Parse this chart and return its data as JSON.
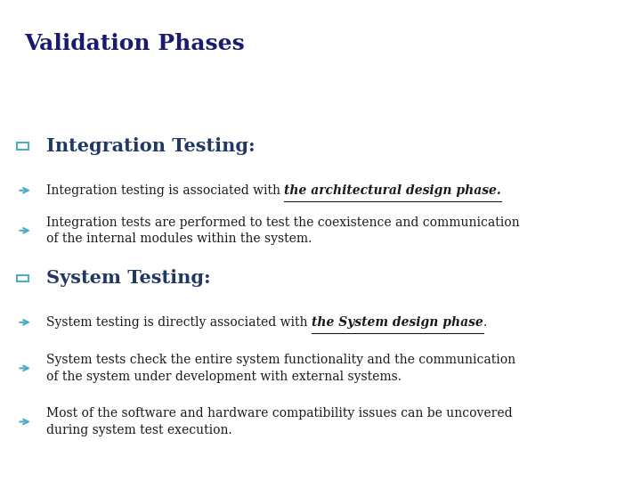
{
  "title": "Validation Phases",
  "title_color": "#1a1a6e",
  "title_fontsize": 18,
  "bg_color_top": "#dce6f1",
  "bg_color_bottom": "#ffffff",
  "header_bar_color": "#b8cce4",
  "right_bar_color": "#92cddc",
  "section1_heading": "Integration Testing:",
  "section2_heading": "System Testing:",
  "heading_color": "#1f3864",
  "heading_fontsize": 15,
  "bullet_color": "#4bacc6",
  "text_color": "#1a1a1a",
  "text_fontsize": 10,
  "normal1": "Integration testing is associated with ",
  "bold1": "the architectural design phase.",
  "line2": "Integration tests are performed to test the coexistence and communication\nof the internal modules within the system.",
  "normal3": "System testing is directly associated with ",
  "bold3": "the System design phase",
  "suffix3": ".",
  "line4": "System tests check the entire system functionality and the communication\nof the system under development with external systems.",
  "line5": "Most of the software and hardware compatibility issues can be uncovered\nduring system test execution."
}
